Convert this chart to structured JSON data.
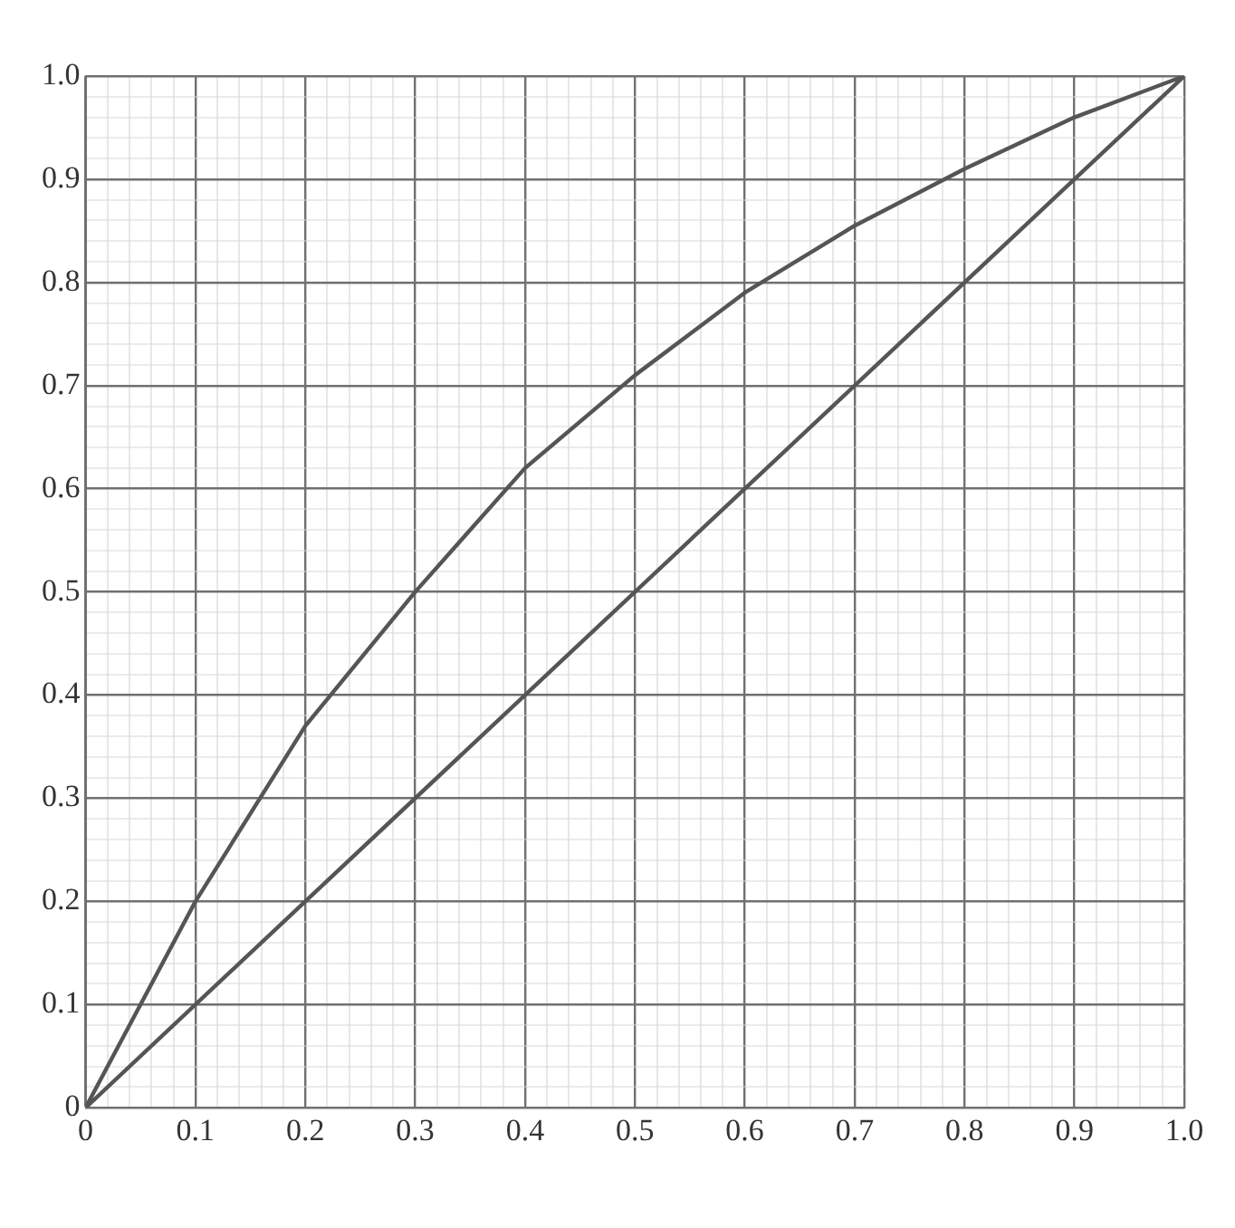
{
  "chart_data": {
    "type": "line",
    "series": [
      {
        "color": "#555555",
        "x": [
          0,
          0.1,
          0.2,
          0.3,
          0.4,
          0.5,
          0.6,
          0.7,
          0.8,
          0.9,
          1
        ],
        "values": [
          0,
          0.2,
          0.37,
          0.5,
          0.62,
          0.71,
          0.79,
          0.855,
          0.91,
          0.96,
          1
        ]
      },
      {
        "color": "#555555",
        "x": [
          0,
          1
        ],
        "values": [
          0,
          1
        ]
      }
    ],
    "xlim": [
      0,
      1
    ],
    "ylim": [
      0,
      1
    ],
    "xticks": [
      0,
      {
        "value": 0.02,
        "label": null
      },
      {
        "value": 0.04,
        "label": null
      },
      {
        "value": 0.06,
        "label": null
      },
      {
        "value": 0.08,
        "label": null
      },
      0.1,
      {
        "value": 0.12,
        "label": null
      },
      {
        "value": 0.14,
        "label": null
      },
      {
        "value": 0.16,
        "label": null
      },
      {
        "value": 0.18,
        "label": null
      },
      0.2,
      {
        "value": 0.22,
        "label": null
      },
      {
        "value": 0.24,
        "label": null
      },
      {
        "value": 0.26,
        "label": null
      },
      {
        "value": 0.28,
        "label": null
      },
      0.3,
      {
        "value": 0.32,
        "label": null
      },
      {
        "value": 0.34,
        "label": null
      },
      {
        "value": 0.36,
        "label": null
      },
      {
        "value": 0.38,
        "label": null
      },
      0.4,
      {
        "value": 0.42,
        "label": null
      },
      {
        "value": 0.44,
        "label": null
      },
      {
        "value": 0.46,
        "label": null
      },
      {
        "value": 0.48,
        "label": null
      },
      0.5,
      {
        "value": 0.52,
        "label": null
      },
      {
        "value": 0.54,
        "label": null
      },
      {
        "value": 0.56,
        "label": null
      },
      {
        "value": 0.58,
        "label": null
      },
      0.6,
      {
        "value": 0.62,
        "label": null
      },
      {
        "value": 0.64,
        "label": null
      },
      {
        "value": 0.66,
        "label": null
      },
      {
        "value": 0.68,
        "label": null
      },
      0.7,
      {
        "value": 0.72,
        "label": null
      },
      {
        "value": 0.74,
        "label": null
      },
      {
        "value": 0.76,
        "label": null
      },
      {
        "value": 0.78,
        "label": null
      },
      0.8,
      {
        "value": 0.82,
        "label": null
      },
      {
        "value": 0.84,
        "label": null
      },
      {
        "value": 0.86,
        "label": null
      },
      {
        "value": 0.88,
        "label": null
      },
      0.9,
      {
        "value": 0.92,
        "label": null
      },
      {
        "value": 0.94,
        "label": null
      },
      {
        "value": 0.96,
        "label": null
      },
      {
        "value": 0.98,
        "label": null
      },
      {
        "value": 1,
        "label": "1.0"
      }
    ],
    "yticks": [
      0,
      {
        "value": 0.02,
        "label": null
      },
      {
        "value": 0.04,
        "label": null
      },
      {
        "value": 0.06,
        "label": null
      },
      {
        "value": 0.08,
        "label": null
      },
      0.1,
      {
        "value": 0.12,
        "label": null
      },
      {
        "value": 0.14,
        "label": null
      },
      {
        "value": 0.16,
        "label": null
      },
      {
        "value": 0.18,
        "label": null
      },
      0.2,
      {
        "value": 0.22,
        "label": null
      },
      {
        "value": 0.24,
        "label": null
      },
      {
        "value": 0.26,
        "label": null
      },
      {
        "value": 0.28,
        "label": null
      },
      0.3,
      {
        "value": 0.32,
        "label": null
      },
      {
        "value": 0.34,
        "label": null
      },
      {
        "value": 0.36,
        "label": null
      },
      {
        "value": 0.38,
        "label": null
      },
      0.4,
      {
        "value": 0.42,
        "label": null
      },
      {
        "value": 0.44,
        "label": null
      },
      {
        "value": 0.46,
        "label": null
      },
      {
        "value": 0.48,
        "label": null
      },
      0.5,
      {
        "value": 0.52,
        "label": null
      },
      {
        "value": 0.54,
        "label": null
      },
      {
        "value": 0.56,
        "label": null
      },
      {
        "value": 0.58,
        "label": null
      },
      0.6,
      {
        "value": 0.62,
        "label": null
      },
      {
        "value": 0.64,
        "label": null
      },
      {
        "value": 0.66,
        "label": null
      },
      {
        "value": 0.68,
        "label": null
      },
      0.7,
      {
        "value": 0.72,
        "label": null
      },
      {
        "value": 0.74,
        "label": null
      },
      {
        "value": 0.76,
        "label": null
      },
      {
        "value": 0.78,
        "label": null
      },
      0.8,
      {
        "value": 0.82,
        "label": null
      },
      {
        "value": 0.84,
        "label": null
      },
      {
        "value": 0.86,
        "label": null
      },
      {
        "value": 0.88,
        "label": null
      },
      0.9,
      {
        "value": 0.92,
        "label": null
      },
      {
        "value": 0.94,
        "label": null
      },
      {
        "value": 0.96,
        "label": null
      },
      {
        "value": 0.98,
        "label": null
      },
      {
        "value": 1,
        "label": "1.0"
      }
    ],
    "grid": true,
    "legend": false,
    "marker": "none",
    "line_style": "solid"
  }
}
